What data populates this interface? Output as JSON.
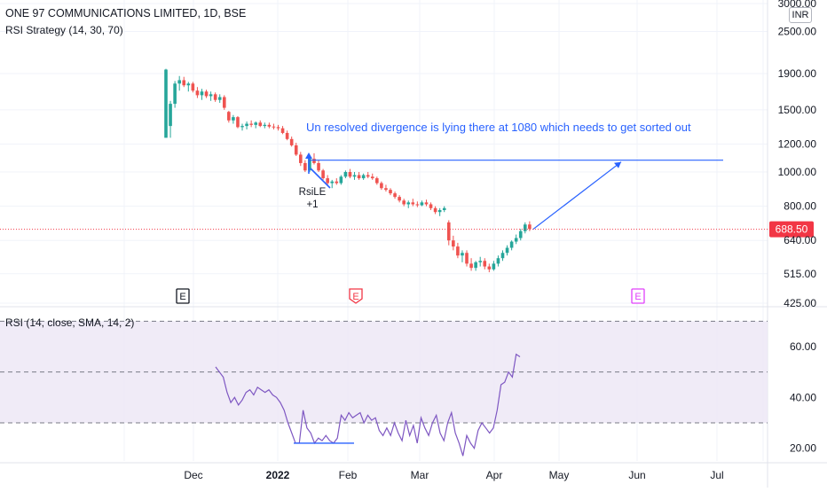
{
  "header": {
    "title": "ONE 97 COMMUNICATIONS LIMITED, 1D, BSE",
    "strategy": "RSI Strategy (14, 30, 70)",
    "currency": "INR"
  },
  "chart_data": [
    {
      "type": "candlestick",
      "title": "ONE 97 COMMUNICATIONS LIMITED, 1D, BSE",
      "y_scale": "log",
      "ylim": [
        425,
        3000
      ],
      "y_ticks": [
        "3000.00",
        "2500.00",
        "1900.00",
        "1500.00",
        "1200.00",
        "1000.00",
        "800.00",
        "640.00",
        "515.00",
        "425.00"
      ],
      "y_tick_values": [
        3000,
        2500,
        1900,
        1500,
        1200,
        1000,
        800,
        640,
        515,
        425
      ],
      "last_price": "688.50",
      "last_price_value": 688.5,
      "colors": {
        "up": "#26a69a",
        "down": "#ef5350",
        "annotation": "#2962ff",
        "last_price": "#f23645"
      },
      "annotation": "Un resolved divergence is lying there at 1080 which needs to get sorted out",
      "divergence_level": 1080,
      "signal_label": "RsiLE",
      "signal_qty": "+1",
      "earnings_markers": [
        "E",
        "E",
        "E"
      ],
      "x_ticks": [
        "Dec",
        "2022",
        "Feb",
        "Mar",
        "Apr",
        "May",
        "Jun",
        "Jul"
      ],
      "candles": [
        {
          "o": 1250,
          "h": 1960,
          "l": 1250,
          "c": 1950
        },
        {
          "o": 1350,
          "h": 1590,
          "l": 1250,
          "c": 1560
        },
        {
          "o": 1560,
          "h": 1810,
          "l": 1520,
          "c": 1780
        },
        {
          "o": 1780,
          "h": 1870,
          "l": 1700,
          "c": 1820
        },
        {
          "o": 1820,
          "h": 1860,
          "l": 1740,
          "c": 1760
        },
        {
          "o": 1760,
          "h": 1800,
          "l": 1690,
          "c": 1780
        },
        {
          "o": 1780,
          "h": 1800,
          "l": 1680,
          "c": 1700
        },
        {
          "o": 1700,
          "h": 1740,
          "l": 1620,
          "c": 1650
        },
        {
          "o": 1650,
          "h": 1720,
          "l": 1600,
          "c": 1690
        },
        {
          "o": 1690,
          "h": 1710,
          "l": 1620,
          "c": 1640
        },
        {
          "o": 1640,
          "h": 1690,
          "l": 1590,
          "c": 1660
        },
        {
          "o": 1660,
          "h": 1680,
          "l": 1580,
          "c": 1600
        },
        {
          "o": 1600,
          "h": 1660,
          "l": 1570,
          "c": 1630
        },
        {
          "o": 1630,
          "h": 1650,
          "l": 1500,
          "c": 1520
        },
        {
          "o": 1480,
          "h": 1490,
          "l": 1380,
          "c": 1400
        },
        {
          "o": 1400,
          "h": 1450,
          "l": 1370,
          "c": 1430
        },
        {
          "o": 1430,
          "h": 1440,
          "l": 1330,
          "c": 1340
        },
        {
          "o": 1340,
          "h": 1370,
          "l": 1310,
          "c": 1350
        },
        {
          "o": 1350,
          "h": 1390,
          "l": 1320,
          "c": 1370
        },
        {
          "o": 1370,
          "h": 1400,
          "l": 1340,
          "c": 1360
        },
        {
          "o": 1360,
          "h": 1390,
          "l": 1330,
          "c": 1380
        },
        {
          "o": 1380,
          "h": 1400,
          "l": 1340,
          "c": 1350
        },
        {
          "o": 1350,
          "h": 1380,
          "l": 1330,
          "c": 1360
        },
        {
          "o": 1360,
          "h": 1380,
          "l": 1330,
          "c": 1345
        },
        {
          "o": 1345,
          "h": 1370,
          "l": 1320,
          "c": 1340
        },
        {
          "o": 1340,
          "h": 1360,
          "l": 1310,
          "c": 1330
        },
        {
          "o": 1330,
          "h": 1350,
          "l": 1280,
          "c": 1290
        },
        {
          "o": 1290,
          "h": 1310,
          "l": 1230,
          "c": 1240
        },
        {
          "o": 1240,
          "h": 1260,
          "l": 1180,
          "c": 1190
        },
        {
          "o": 1190,
          "h": 1210,
          "l": 1110,
          "c": 1120
        },
        {
          "o": 1120,
          "h": 1140,
          "l": 1040,
          "c": 1060
        },
        {
          "o": 1060,
          "h": 1080,
          "l": 1000,
          "c": 1010
        },
        {
          "o": 1010,
          "h": 1100,
          "l": 1000,
          "c": 1090
        },
        {
          "o": 1090,
          "h": 1130,
          "l": 1050,
          "c": 1060
        },
        {
          "o": 1060,
          "h": 1080,
          "l": 1000,
          "c": 1010
        },
        {
          "o": 1010,
          "h": 1020,
          "l": 950,
          "c": 960
        },
        {
          "o": 960,
          "h": 980,
          "l": 920,
          "c": 930
        },
        {
          "o": 930,
          "h": 950,
          "l": 900,
          "c": 940
        },
        {
          "o": 940,
          "h": 960,
          "l": 920,
          "c": 930
        },
        {
          "o": 930,
          "h": 980,
          "l": 920,
          "c": 970
        },
        {
          "o": 970,
          "h": 1010,
          "l": 960,
          "c": 1000
        },
        {
          "o": 1000,
          "h": 1020,
          "l": 960,
          "c": 970
        },
        {
          "o": 970,
          "h": 1000,
          "l": 950,
          "c": 980
        },
        {
          "o": 980,
          "h": 1000,
          "l": 950,
          "c": 960
        },
        {
          "o": 960,
          "h": 990,
          "l": 950,
          "c": 980
        },
        {
          "o": 980,
          "h": 1000,
          "l": 960,
          "c": 970
        },
        {
          "o": 970,
          "h": 990,
          "l": 950,
          "c": 960
        },
        {
          "o": 960,
          "h": 970,
          "l": 920,
          "c": 930
        },
        {
          "o": 930,
          "h": 940,
          "l": 890,
          "c": 900
        },
        {
          "o": 900,
          "h": 920,
          "l": 880,
          "c": 890
        },
        {
          "o": 890,
          "h": 900,
          "l": 860,
          "c": 870
        },
        {
          "o": 870,
          "h": 880,
          "l": 840,
          "c": 850
        },
        {
          "o": 850,
          "h": 860,
          "l": 820,
          "c": 830
        },
        {
          "o": 830,
          "h": 840,
          "l": 800,
          "c": 810
        },
        {
          "o": 810,
          "h": 830,
          "l": 790,
          "c": 820
        },
        {
          "o": 820,
          "h": 840,
          "l": 800,
          "c": 810
        },
        {
          "o": 810,
          "h": 825,
          "l": 795,
          "c": 805
        },
        {
          "o": 805,
          "h": 830,
          "l": 800,
          "c": 820
        },
        {
          "o": 820,
          "h": 835,
          "l": 800,
          "c": 810
        },
        {
          "o": 810,
          "h": 820,
          "l": 780,
          "c": 790
        },
        {
          "o": 790,
          "h": 800,
          "l": 760,
          "c": 770
        },
        {
          "o": 770,
          "h": 790,
          "l": 750,
          "c": 780
        },
        {
          "o": 780,
          "h": 800,
          "l": 770,
          "c": 790
        },
        {
          "o": 720,
          "h": 730,
          "l": 620,
          "c": 640
        },
        {
          "o": 640,
          "h": 660,
          "l": 600,
          "c": 615
        },
        {
          "o": 615,
          "h": 630,
          "l": 570,
          "c": 580
        },
        {
          "o": 580,
          "h": 600,
          "l": 555,
          "c": 590
        },
        {
          "o": 590,
          "h": 600,
          "l": 540,
          "c": 550
        },
        {
          "o": 550,
          "h": 570,
          "l": 525,
          "c": 535
        },
        {
          "o": 535,
          "h": 560,
          "l": 525,
          "c": 555
        },
        {
          "o": 555,
          "h": 575,
          "l": 540,
          "c": 560
        },
        {
          "o": 560,
          "h": 570,
          "l": 530,
          "c": 540
        },
        {
          "o": 540,
          "h": 550,
          "l": 520,
          "c": 530
        },
        {
          "o": 530,
          "h": 560,
          "l": 525,
          "c": 550
        },
        {
          "o": 550,
          "h": 580,
          "l": 540,
          "c": 570
        },
        {
          "o": 570,
          "h": 600,
          "l": 560,
          "c": 590
        },
        {
          "o": 590,
          "h": 620,
          "l": 580,
          "c": 610
        },
        {
          "o": 610,
          "h": 640,
          "l": 600,
          "c": 635
        },
        {
          "o": 635,
          "h": 665,
          "l": 625,
          "c": 650
        },
        {
          "o": 650,
          "h": 690,
          "l": 640,
          "c": 680
        },
        {
          "o": 680,
          "h": 720,
          "l": 670,
          "c": 710
        },
        {
          "o": 710,
          "h": 725,
          "l": 680,
          "c": 690
        }
      ]
    },
    {
      "type": "line",
      "title": "RSI (14, close, SMA, 14, 2)",
      "ylim": [
        15,
        75
      ],
      "y_ticks": [
        "60.00",
        "40.00",
        "20.00"
      ],
      "y_tick_values": [
        60,
        40,
        20
      ],
      "bands": [
        70,
        30
      ],
      "midline": 50,
      "colors": {
        "line": "#7e57c2",
        "band_fill": "#ede7f6",
        "divergence": "#2962ff"
      },
      "values": [
        52,
        50,
        48,
        42,
        38,
        40,
        37,
        39,
        42,
        43,
        41,
        44,
        43,
        42,
        43,
        41,
        40,
        38,
        35,
        30,
        26,
        22,
        22,
        35,
        28,
        26,
        22,
        24,
        23,
        25,
        23,
        22,
        24,
        33,
        31,
        34,
        32,
        33,
        34,
        30,
        33,
        31,
        32,
        27,
        25,
        28,
        25,
        30,
        26,
        23,
        31,
        25,
        29,
        22,
        32,
        28,
        25,
        30,
        33,
        26,
        23,
        30,
        34,
        26,
        22,
        17,
        25,
        22,
        20,
        27,
        30,
        28,
        26,
        28,
        35,
        45,
        46,
        50,
        48,
        57,
        56
      ]
    }
  ]
}
